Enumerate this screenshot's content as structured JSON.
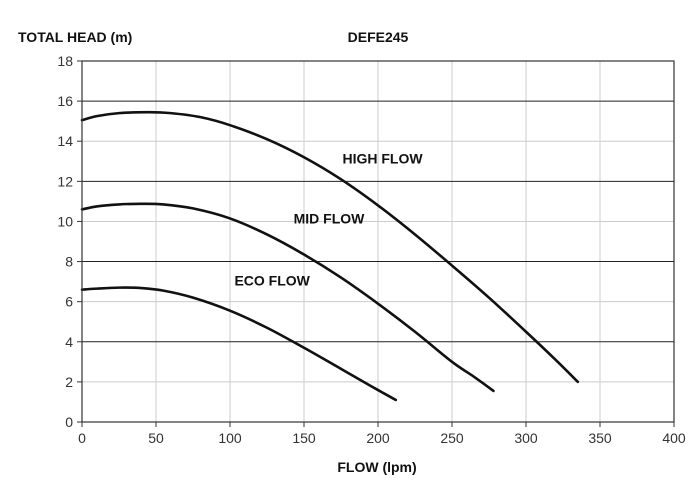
{
  "chart_data": {
    "type": "line",
    "title": "DEFE245",
    "ylabel": "TOTAL HEAD (m)",
    "xlabel": "FLOW (lpm)",
    "xlim": [
      0,
      400
    ],
    "ylim": [
      0,
      18
    ],
    "xticks": [
      0,
      50,
      100,
      150,
      200,
      250,
      300,
      350,
      400
    ],
    "yticks": [
      0,
      2,
      4,
      6,
      8,
      10,
      12,
      14,
      16,
      18
    ],
    "grid": true,
    "series": [
      {
        "name": "HIGH FLOW",
        "x": [
          0,
          10,
          25,
          45,
          60,
          80,
          100,
          125,
          150,
          175,
          200,
          225,
          250,
          275,
          300,
          320,
          335
        ],
        "y": [
          15.05,
          15.25,
          15.4,
          15.45,
          15.4,
          15.2,
          14.8,
          14.1,
          13.2,
          12.1,
          10.8,
          9.35,
          7.8,
          6.2,
          4.5,
          3.1,
          2.0
        ],
        "color": "#111111"
      },
      {
        "name": "MID FLOW",
        "x": [
          0,
          10,
          25,
          40,
          55,
          75,
          100,
          125,
          150,
          175,
          200,
          225,
          250,
          265,
          278
        ],
        "y": [
          10.6,
          10.75,
          10.85,
          10.88,
          10.85,
          10.65,
          10.15,
          9.35,
          8.35,
          7.2,
          5.9,
          4.5,
          3.0,
          2.25,
          1.55
        ],
        "color": "#111111"
      },
      {
        "name": "ECO FLOW",
        "x": [
          0,
          10,
          25,
          40,
          55,
          75,
          100,
          125,
          150,
          175,
          195,
          212
        ],
        "y": [
          6.6,
          6.65,
          6.7,
          6.68,
          6.55,
          6.2,
          5.55,
          4.7,
          3.7,
          2.65,
          1.8,
          1.1
        ],
        "color": "#111111"
      }
    ],
    "annotations": [
      {
        "text": "HIGH FLOW",
        "x": 176,
        "y": 12.9,
        "series": "HIGH FLOW"
      },
      {
        "text": "MID FLOW",
        "x": 143,
        "y": 9.9,
        "series": "MID FLOW"
      },
      {
        "text": "ECO FLOW",
        "x": 103,
        "y": 6.8,
        "series": "ECO FLOW"
      }
    ],
    "colors": {
      "background": "#ffffff",
      "major_grid": "#222222",
      "minor_grid": "#cccccc",
      "curve": "#111111"
    }
  }
}
